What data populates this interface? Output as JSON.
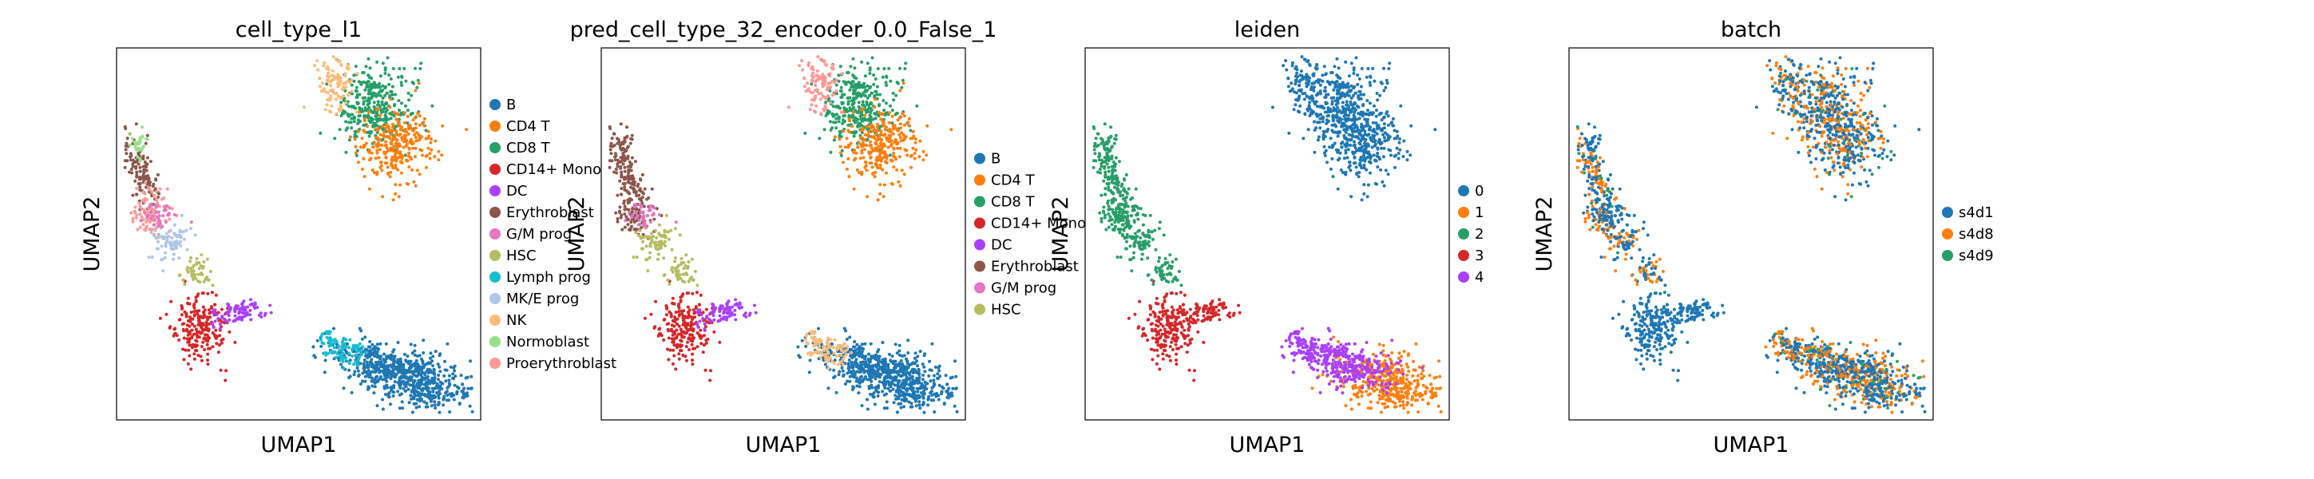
{
  "figure": {
    "panels": [
      {
        "title": "cell_type_l1",
        "xlabel": "UMAP1",
        "ylabel": "UMAP2",
        "legend": [
          "B",
          "CD4 T",
          "CD8 T",
          "CD14+ Mono",
          "DC",
          "Erythroblast",
          "G/M prog",
          "HSC",
          "Lymph prog",
          "MK/E prog",
          "NK",
          "Normoblast",
          "Proerythroblast"
        ]
      },
      {
        "title": "pred_cell_type_32_encoder_0.0_False_1",
        "xlabel": "UMAP1",
        "ylabel": "UMAP2",
        "legend": [
          "B",
          "CD4 T",
          "CD8 T",
          "CD14+ Mono",
          "DC",
          "Erythroblast",
          "G/M prog",
          "HSC"
        ]
      },
      {
        "title": "leiden",
        "xlabel": "UMAP1",
        "ylabel": "UMAP2",
        "legend": [
          "0",
          "1",
          "2",
          "3",
          "4"
        ]
      },
      {
        "title": "batch",
        "xlabel": "UMAP1",
        "ylabel": "UMAP2",
        "legend": [
          "s4d1",
          "s4d8",
          "s4d9"
        ]
      }
    ]
  },
  "colors": {
    "B": "#1f77b4",
    "CD4 T": "#ff7f0e",
    "CD8 T": "#279e68",
    "CD14+ Mono": "#d62728",
    "DC": "#aa40fc",
    "Erythroblast": "#8c564b",
    "G/M prog": "#e377c2",
    "HSC": "#b5bd61",
    "Lymph prog": "#17becf",
    "MK/E prog": "#aec7e8",
    "NK": "#ffbb78",
    "Normoblast": "#98df8a",
    "Proerythroblast": "#ff9896",
    "0": "#1f77b4",
    "1": "#ff7f0e",
    "2": "#279e68",
    "3": "#d62728",
    "4": "#aa40fc",
    "s4d1": "#1f77b4",
    "s4d8": "#ff7f0e",
    "s4d9": "#279e68"
  },
  "chart_data": [
    {
      "type": "scatter",
      "title": "cell_type_l1",
      "xlabel": "UMAP1",
      "ylabel": "UMAP2",
      "color_by": "cell_type_l1",
      "series": [
        {
          "name": "B",
          "approx_clusters": [
            [
              0.75,
              0.13
            ],
            [
              0.87,
              0.1
            ]
          ]
        },
        {
          "name": "CD4 T",
          "approx_clusters": [
            [
              0.8,
              0.72
            ]
          ]
        },
        {
          "name": "CD8 T",
          "approx_clusters": [
            [
              0.73,
              0.85
            ]
          ]
        },
        {
          "name": "CD14+ Mono",
          "approx_clusters": [
            [
              0.22,
              0.24
            ]
          ]
        },
        {
          "name": "DC",
          "approx_clusters": [
            [
              0.35,
              0.3
            ]
          ]
        },
        {
          "name": "Erythroblast",
          "approx_clusters": [
            [
              0.07,
              0.64
            ]
          ]
        },
        {
          "name": "G/M prog",
          "approx_clusters": [
            [
              0.1,
              0.55
            ]
          ]
        },
        {
          "name": "HSC",
          "approx_clusters": [
            [
              0.25,
              0.38
            ]
          ]
        },
        {
          "name": "Lymph prog",
          "approx_clusters": [
            [
              0.6,
              0.2
            ]
          ]
        },
        {
          "name": "MK/E prog",
          "approx_clusters": [
            [
              0.15,
              0.48
            ]
          ]
        },
        {
          "name": "NK",
          "approx_clusters": [
            [
              0.57,
              0.9
            ]
          ]
        },
        {
          "name": "Normoblast",
          "approx_clusters": [
            [
              0.06,
              0.73
            ]
          ]
        },
        {
          "name": "Proerythroblast",
          "approx_clusters": [
            [
              0.09,
              0.58
            ]
          ]
        }
      ]
    },
    {
      "type": "scatter",
      "title": "pred_cell_type_32_encoder_0.0_False_1",
      "xlabel": "UMAP1",
      "ylabel": "UMAP2",
      "color_by": "pred_cell_type"
    },
    {
      "type": "scatter",
      "title": "leiden",
      "xlabel": "UMAP1",
      "ylabel": "UMAP2",
      "color_by": "leiden"
    },
    {
      "type": "scatter",
      "title": "batch",
      "xlabel": "UMAP1",
      "ylabel": "UMAP2",
      "color_by": "batch"
    }
  ]
}
